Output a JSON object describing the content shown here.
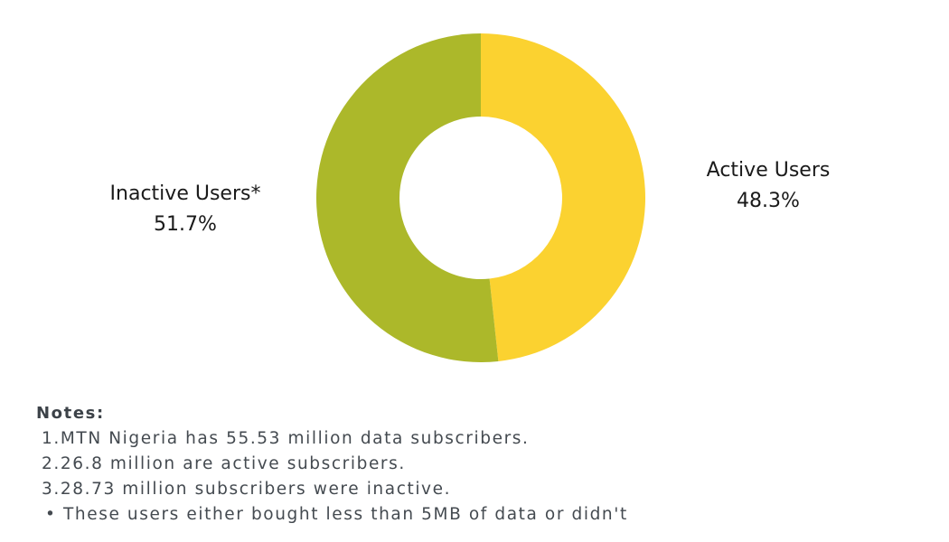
{
  "chart_data": {
    "type": "pie",
    "variant": "donut",
    "title": "",
    "categories": [
      "Active Users",
      "Inactive Users*"
    ],
    "values": [
      48.3,
      51.7
    ],
    "unit": "%",
    "colors": [
      "#fbd230",
      "#acb82a"
    ],
    "labels": [
      {
        "name": "Active Users",
        "value": "48.3%"
      },
      {
        "name": "Inactive Users*",
        "value": "51.7%"
      }
    ],
    "legend": "none (direct labels)"
  },
  "labels": {
    "active": {
      "name": "Active Users",
      "value": "48.3%"
    },
    "inactive": {
      "name": "Inactive Users*",
      "value": "51.7%"
    }
  },
  "notes": {
    "title": "Notes:",
    "items": [
      {
        "marker": "1.",
        "text": "MTN Nigeria has 55.53 million data subscribers."
      },
      {
        "marker": "2.",
        "text": "26.8 million are active subscribers."
      },
      {
        "marker": "3.",
        "text": "28.73 million subscribers were inactive."
      },
      {
        "marker": "•",
        "text": "These users either bought less than 5MB of data or didn't"
      }
    ]
  }
}
